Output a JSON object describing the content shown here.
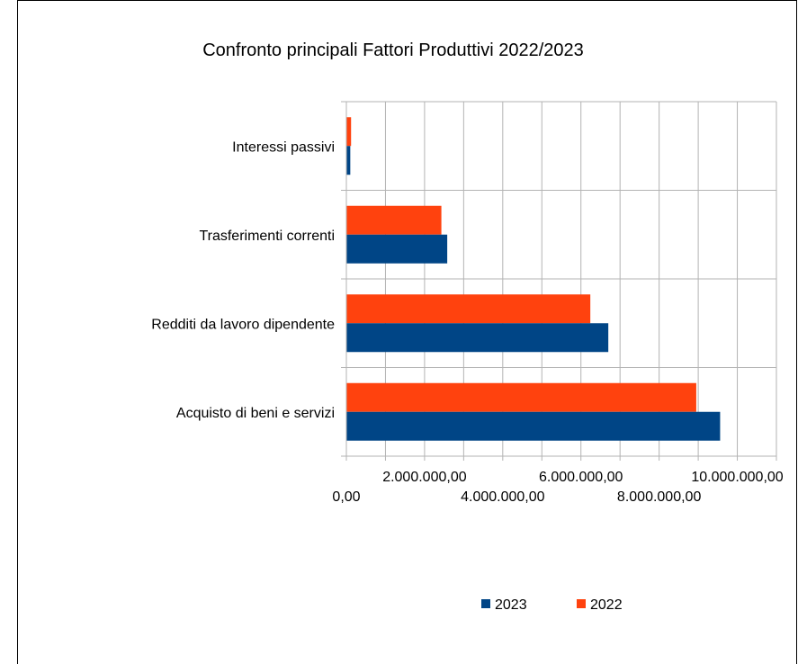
{
  "chart_data": {
    "type": "bar",
    "orientation": "horizontal",
    "title": "Confronto principali Fattori Produttivi 2022/2023",
    "categories": [
      "Interessi passivi",
      "Trasferimenti correnti",
      "Redditi da lavoro dipendente",
      "Acquisto di beni e servizi"
    ],
    "series": [
      {
        "name": "2023",
        "color": "#004586",
        "values": [
          100000,
          2580000,
          6700000,
          9560000
        ]
      },
      {
        "name": "2022",
        "color": "#ff420e",
        "values": [
          120000,
          2430000,
          6240000,
          8950000
        ]
      }
    ],
    "xlim": [
      0,
      11000000
    ],
    "x_ticks": [
      "0,00",
      "2.000.000,00",
      "4.000.000,00",
      "6.000.000,00",
      "8.000.000,00",
      "10.000.000,00"
    ],
    "x_tick_values": [
      0,
      2000000,
      4000000,
      6000000,
      8000000,
      10000000
    ],
    "grid": true,
    "legend_position": "bottom"
  }
}
